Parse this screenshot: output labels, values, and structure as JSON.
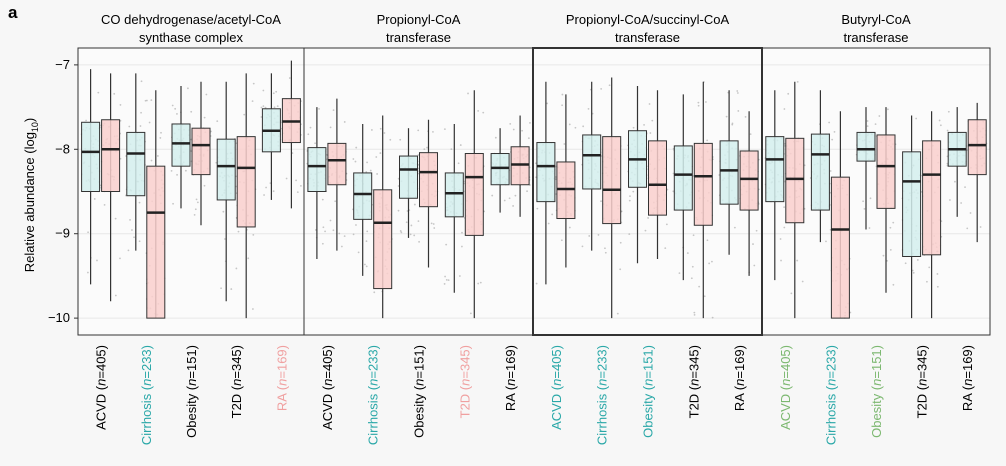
{
  "panel_label": "a",
  "colors": {
    "box_teal": "#d4efed",
    "box_pink": "#f9cfcc",
    "stroke": "#333333",
    "label_teal": "#2aa8a8",
    "label_pink": "#f0a0a0",
    "label_green": "#7cb870",
    "label_black": "#000000"
  },
  "chart_data": {
    "type": "boxplot",
    "ylabel": "Relative abundance (log10)",
    "ylabel_base": "Relative abundance (log",
    "ylabel_sub": "10",
    "ylabel_end": ")",
    "ylim": [
      -10.2,
      -6.8
    ],
    "yticks": [
      -10,
      -9,
      -8,
      -7
    ],
    "ytick_labels": [
      "−10",
      "−9",
      "−8",
      "−7"
    ],
    "grid": true,
    "facets": [
      {
        "title": [
          "CO dehydrogenase/acetyl-CoA",
          "synthase complex"
        ],
        "groups": [
          {
            "label": "ACVD (n=405)",
            "disease": "ACVD",
            "n": "n",
            "count": "=405)",
            "label_color": "black",
            "control": {
              "whisker_low": -9.6,
              "q1": -8.5,
              "median": -8.03,
              "q3": -7.68,
              "whisker_high": -7.05
            },
            "case": {
              "whisker_low": -9.8,
              "q1": -8.5,
              "median": -8.0,
              "q3": -7.65,
              "whisker_high": -7.1
            }
          },
          {
            "label": "Cirrhosis (n=233)",
            "disease": "Cirrhosis",
            "n": "n",
            "count": "=233)",
            "label_color": "teal",
            "control": {
              "whisker_low": -9.2,
              "q1": -8.55,
              "median": -8.05,
              "q3": -7.8,
              "whisker_high": -7.1
            },
            "case": {
              "whisker_low": -10.0,
              "q1": -10.0,
              "median": -8.75,
              "q3": -8.2,
              "whisker_high": -7.3
            }
          },
          {
            "label": "Obesity (n=151)",
            "disease": "Obesity",
            "n": "n",
            "count": "=151)",
            "label_color": "black",
            "control": {
              "whisker_low": -8.7,
              "q1": -8.2,
              "median": -7.93,
              "q3": -7.7,
              "whisker_high": -7.25
            },
            "case": {
              "whisker_low": -8.9,
              "q1": -8.3,
              "median": -7.95,
              "q3": -7.75,
              "whisker_high": -7.2
            }
          },
          {
            "label": "T2D (n=345)",
            "disease": "T2D",
            "n": "n",
            "count": "=345)",
            "label_color": "black",
            "control": {
              "whisker_low": -9.8,
              "q1": -8.6,
              "median": -8.2,
              "q3": -7.88,
              "whisker_high": -7.2
            },
            "case": {
              "whisker_low": -10.0,
              "q1": -8.92,
              "median": -8.22,
              "q3": -7.85,
              "whisker_high": -7.1
            }
          },
          {
            "label": "RA (n=169)",
            "disease": "RA",
            "n": "n",
            "count": "=169)",
            "label_color": "pink",
            "control": {
              "whisker_low": -8.6,
              "q1": -8.03,
              "median": -7.78,
              "q3": -7.52,
              "whisker_high": -7.1
            },
            "case": {
              "whisker_low": -8.7,
              "q1": -7.92,
              "median": -7.67,
              "q3": -7.4,
              "whisker_high": -6.95
            }
          }
        ]
      },
      {
        "title": [
          "Propionyl-CoA",
          "transferase"
        ],
        "groups": [
          {
            "label": "ACVD (n=405)",
            "disease": "ACVD",
            "n": "n",
            "count": "=405)",
            "label_color": "black",
            "control": {
              "whisker_low": -9.3,
              "q1": -8.5,
              "median": -8.2,
              "q3": -7.98,
              "whisker_high": -7.5
            },
            "case": {
              "whisker_low": -9.2,
              "q1": -8.42,
              "median": -8.13,
              "q3": -7.93,
              "whisker_high": -7.4
            }
          },
          {
            "label": "Cirrhosis (n=233)",
            "disease": "Cirrhosis",
            "n": "n",
            "count": "=233)",
            "label_color": "teal",
            "control": {
              "whisker_low": -9.5,
              "q1": -8.83,
              "median": -8.53,
              "q3": -8.28,
              "whisker_high": -7.7
            },
            "case": {
              "whisker_low": -10.0,
              "q1": -9.65,
              "median": -8.87,
              "q3": -8.48,
              "whisker_high": -7.6
            }
          },
          {
            "label": "Obesity (n=151)",
            "disease": "Obesity",
            "n": "n",
            "count": "=151)",
            "label_color": "black",
            "control": {
              "whisker_low": -9.05,
              "q1": -8.58,
              "median": -8.24,
              "q3": -8.08,
              "whisker_high": -7.75
            },
            "case": {
              "whisker_low": -9.4,
              "q1": -8.68,
              "median": -8.27,
              "q3": -8.04,
              "whisker_high": -7.65
            }
          },
          {
            "label": "T2D (n=345)",
            "disease": "T2D",
            "n": "n",
            "count": "=345)",
            "label_color": "pink",
            "control": {
              "whisker_low": -9.7,
              "q1": -8.8,
              "median": -8.52,
              "q3": -8.28,
              "whisker_high": -7.7
            },
            "case": {
              "whisker_low": -10.0,
              "q1": -9.02,
              "median": -8.33,
              "q3": -8.05,
              "whisker_high": -7.3
            }
          },
          {
            "label": "RA (n=169)",
            "disease": "RA",
            "n": "n",
            "count": "=169)",
            "label_color": "black",
            "control": {
              "whisker_low": -8.75,
              "q1": -8.42,
              "median": -8.22,
              "q3": -8.05,
              "whisker_high": -7.75
            },
            "case": {
              "whisker_low": -8.8,
              "q1": -8.42,
              "median": -8.18,
              "q3": -7.97,
              "whisker_high": -7.6
            }
          }
        ]
      },
      {
        "title": [
          "Propionyl-CoA/succinyl-CoA",
          "transferase"
        ],
        "groups": [
          {
            "label": "ACVD (n=405)",
            "disease": "ACVD",
            "n": "n",
            "count": "=405)",
            "label_color": "teal",
            "control": {
              "whisker_low": -9.6,
              "q1": -8.62,
              "median": -8.2,
              "q3": -7.92,
              "whisker_high": -7.2
            },
            "case": {
              "whisker_low": -9.4,
              "q1": -8.82,
              "median": -8.47,
              "q3": -8.15,
              "whisker_high": -7.35
            }
          },
          {
            "label": "Cirrhosis (n=233)",
            "disease": "Cirrhosis",
            "n": "n",
            "count": "=233)",
            "label_color": "teal",
            "control": {
              "whisker_low": -9.2,
              "q1": -8.47,
              "median": -8.07,
              "q3": -7.83,
              "whisker_high": -7.2
            },
            "case": {
              "whisker_low": -10.0,
              "q1": -8.88,
              "median": -8.48,
              "q3": -7.85,
              "whisker_high": -7.15
            }
          },
          {
            "label": "Obesity (n=151)",
            "disease": "Obesity",
            "n": "n",
            "count": "=151)",
            "label_color": "teal",
            "control": {
              "whisker_low": -9.35,
              "q1": -8.45,
              "median": -8.12,
              "q3": -7.78,
              "whisker_high": -7.25
            },
            "case": {
              "whisker_low": -9.3,
              "q1": -8.78,
              "median": -8.42,
              "q3": -7.9,
              "whisker_high": -7.3
            }
          },
          {
            "label": "T2D (n=345)",
            "disease": "T2D",
            "n": "n",
            "count": "=345)",
            "label_color": "black",
            "control": {
              "whisker_low": -9.55,
              "q1": -8.72,
              "median": -8.3,
              "q3": -7.96,
              "whisker_high": -7.35
            },
            "case": {
              "whisker_low": -10.0,
              "q1": -8.9,
              "median": -8.32,
              "q3": -7.93,
              "whisker_high": -7.2
            }
          },
          {
            "label": "RA (n=169)",
            "disease": "RA",
            "n": "n",
            "count": "=169)",
            "label_color": "black",
            "control": {
              "whisker_low": -9.25,
              "q1": -8.65,
              "median": -8.25,
              "q3": -7.9,
              "whisker_high": -7.3
            },
            "case": {
              "whisker_low": -9.5,
              "q1": -8.72,
              "median": -8.35,
              "q3": -8.02,
              "whisker_high": -7.55
            }
          }
        ]
      },
      {
        "title": [
          "Butyryl-CoA",
          "transferase"
        ],
        "groups": [
          {
            "label": "ACVD (n=405)",
            "disease": "ACVD",
            "n": "n",
            "count": "=405)",
            "label_color": "green",
            "control": {
              "whisker_low": -9.55,
              "q1": -8.62,
              "median": -8.12,
              "q3": -7.85,
              "whisker_high": -7.3
            },
            "case": {
              "whisker_low": -10.0,
              "q1": -8.87,
              "median": -8.35,
              "q3": -7.87,
              "whisker_high": -7.2
            }
          },
          {
            "label": "Cirrhosis (n=233)",
            "disease": "Cirrhosis",
            "n": "n",
            "count": "=233)",
            "label_color": "teal",
            "control": {
              "whisker_low": -9.1,
              "q1": -8.72,
              "median": -8.06,
              "q3": -7.82,
              "whisker_high": -7.3
            },
            "case": {
              "whisker_low": -10.0,
              "q1": -10.0,
              "median": -8.95,
              "q3": -8.33,
              "whisker_high": -7.55
            }
          },
          {
            "label": "Obesity (n=151)",
            "disease": "Obesity",
            "n": "n",
            "count": "=151)",
            "label_color": "green",
            "control": {
              "whisker_low": -8.95,
              "q1": -8.14,
              "median": -8.0,
              "q3": -7.8,
              "whisker_high": -7.5
            },
            "case": {
              "whisker_low": -9.7,
              "q1": -8.7,
              "median": -8.2,
              "q3": -7.83,
              "whisker_high": -7.5
            }
          },
          {
            "label": "T2D (n=345)",
            "disease": "T2D",
            "n": "n",
            "count": "=345)",
            "label_color": "black",
            "control": {
              "whisker_low": -10.0,
              "q1": -9.27,
              "median": -8.38,
              "q3": -8.03,
              "whisker_high": -7.6
            },
            "case": {
              "whisker_low": -10.0,
              "q1": -9.25,
              "median": -8.3,
              "q3": -7.9,
              "whisker_high": -7.55
            }
          },
          {
            "label": "RA (n=169)",
            "disease": "RA",
            "n": "n",
            "count": "=169)",
            "label_color": "black",
            "control": {
              "whisker_low": -8.8,
              "q1": -8.2,
              "median": -8.0,
              "q3": -7.8,
              "whisker_high": -7.5
            },
            "case": {
              "whisker_low": -9.1,
              "q1": -8.3,
              "median": -7.95,
              "q3": -7.65,
              "whisker_high": -7.45
            }
          }
        ]
      }
    ]
  }
}
